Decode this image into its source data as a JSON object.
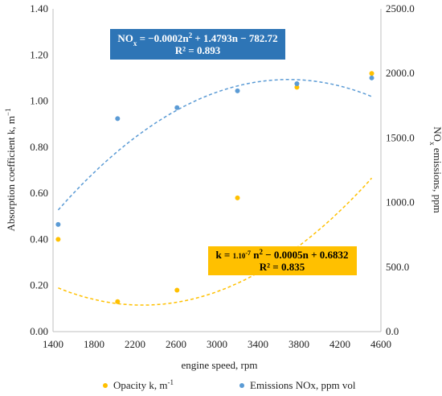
{
  "chart_data": {
    "type": "scatter",
    "x_axis": {
      "label": "engine speed, rpm",
      "range": [
        1400,
        4600
      ],
      "ticks": [
        "1400",
        "1800",
        "2200",
        "2600",
        "3000",
        "3400",
        "3800",
        "4200",
        "4600"
      ]
    },
    "y_axis_left": {
      "label": "Absorption coefficient k, m⁻¹",
      "range": [
        0,
        1.4
      ],
      "ticks": [
        "0.00",
        "0.20",
        "0.40",
        "0.60",
        "0.80",
        "1.00",
        "1.20",
        "1.40"
      ]
    },
    "y_axis_right": {
      "label": "NOx emissions, ppm",
      "range": [
        0,
        2500
      ],
      "ticks": [
        "0.0",
        "500.0",
        "1000.0",
        "1500.0",
        "2000.0",
        "2500.0"
      ]
    },
    "series": [
      {
        "name": "Opacity    k, m⁻¹",
        "axis": "left",
        "color": "#FFC000",
        "points": [
          [
            1450,
            0.4
          ],
          [
            2030,
            0.13
          ],
          [
            2610,
            0.18
          ],
          [
            3200,
            0.58
          ],
          [
            3780,
            1.06
          ],
          [
            4510,
            1.12
          ]
        ],
        "trend": {
          "type": "polynomial",
          "color": "#FFC000",
          "coefficients": [
            0.6832,
            -0.0005,
            1.1e-07
          ]
        }
      },
      {
        "name": "Emissions NOx, ppm vol",
        "axis": "right",
        "color": "#5B9BD5",
        "points": [
          [
            1450,
            830
          ],
          [
            2030,
            1650
          ],
          [
            2610,
            1735
          ],
          [
            3200,
            1865
          ],
          [
            3780,
            1920
          ],
          [
            4510,
            1965
          ]
        ],
        "trend": {
          "type": "polynomial",
          "color": "#5B9BD5",
          "coefficients": [
            -782.72,
            1.4793,
            -0.0002
          ]
        }
      }
    ],
    "annotations": [
      {
        "id": "nox_eq",
        "line1_pre": "NO",
        "line1_sub": "x",
        "line1_post": " = −0.0002n² + 1.4793n − 782.72",
        "line2": "R² = 0.893",
        "bg": "#2E75B6",
        "fg": "#ffffff"
      },
      {
        "id": "k_eq",
        "line1_pre": "k = ",
        "line1_small": "1.10",
        "line1_exp": "-7",
        "line1_post": " n² − 0.0005n + 0.6832",
        "line2": "R² = 0.835",
        "bg": "#FFC000",
        "fg": "#000000"
      }
    ],
    "legend_position": "bottom",
    "grid": false
  }
}
